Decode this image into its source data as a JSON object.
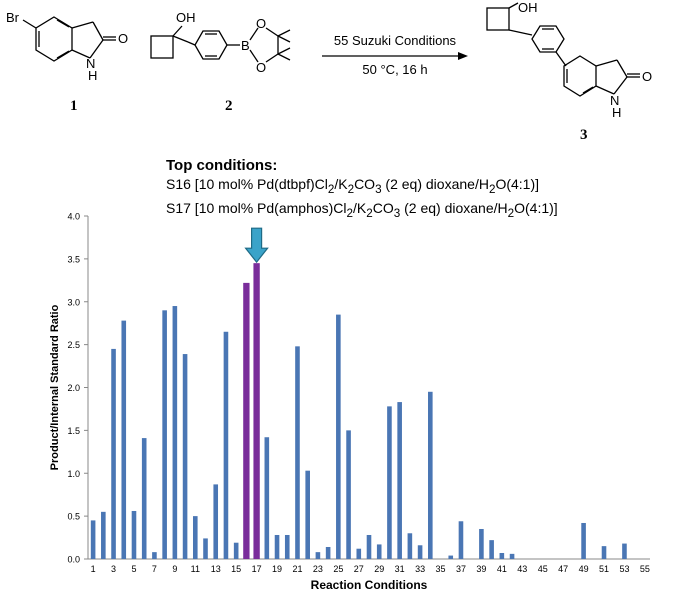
{
  "scheme": {
    "compound_1_label": "1",
    "compound_2_label": "2",
    "compound_3_label": "3",
    "reagent_text": "55 Suzuki Conditions",
    "condition_text": "50 °C, 16 h",
    "atoms": {
      "br": "Br",
      "nh": "N",
      "h": "H",
      "o": "O",
      "oh": "OH",
      "b": "B"
    }
  },
  "top_conditions": {
    "heading": "Top conditions:",
    "line1": "S16 [10 mol% Pd(dtbpf)Cl2/K2CO3 (2 eq) dioxane/H2O(4:1)]",
    "line2": "S17 [10 mol% Pd(amphos)Cl2/K2CO3 (2 eq) dioxane/H2O(4:1)]"
  },
  "chart_data": {
    "type": "bar",
    "ylabel": "Product/Internal Standard Ratio",
    "xlabel": "Reaction Conditions",
    "ylim": [
      0,
      4.0
    ],
    "yticks": [
      "0.0",
      "0.5",
      "1.0",
      "1.5",
      "2.0",
      "2.5",
      "3.0",
      "3.5",
      "4.0"
    ],
    "xtick_labels": [
      "1",
      "3",
      "5",
      "7",
      "9",
      "11",
      "13",
      "15",
      "17",
      "19",
      "21",
      "23",
      "25",
      "27",
      "29",
      "31",
      "33",
      "35",
      "37",
      "39",
      "41",
      "43",
      "45",
      "47",
      "49",
      "51",
      "53",
      "55"
    ],
    "categories": [
      1,
      2,
      3,
      4,
      5,
      6,
      7,
      8,
      9,
      10,
      11,
      12,
      13,
      14,
      15,
      16,
      17,
      18,
      19,
      20,
      21,
      22,
      23,
      24,
      25,
      26,
      27,
      28,
      29,
      30,
      31,
      32,
      33,
      34,
      35,
      36,
      37,
      38,
      39,
      40,
      41,
      42,
      43,
      44,
      45,
      46,
      47,
      48,
      49,
      50,
      51,
      52,
      53,
      54,
      55
    ],
    "values": [
      0.45,
      0.55,
      2.45,
      2.78,
      0.56,
      1.41,
      0.08,
      2.9,
      2.95,
      2.39,
      0.5,
      0.24,
      0.87,
      2.65,
      0.19,
      3.22,
      3.45,
      1.42,
      0.28,
      0.28,
      2.48,
      1.03,
      0.08,
      0.14,
      2.85,
      1.5,
      0.12,
      0.28,
      0.17,
      1.78,
      1.83,
      0.3,
      0.16,
      1.95,
      0,
      0.04,
      0.44,
      0,
      0.35,
      0.22,
      0.07,
      0.06,
      0,
      0,
      0,
      0,
      0,
      0,
      0.42,
      0,
      0.15,
      0,
      0.18,
      0,
      0
    ],
    "highlight": [
      16,
      17
    ],
    "arrow_target": 17,
    "colors": {
      "bar": "#4a76b4",
      "highlight": "#7a2d9b",
      "arrow": "#3aa3c9",
      "arrow_edge": "#1f6b86"
    },
    "grid": false
  }
}
